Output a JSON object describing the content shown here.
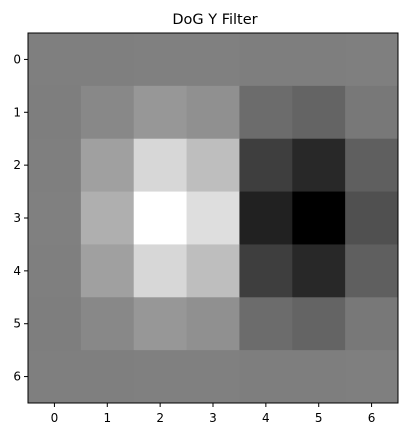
{
  "chart_data": {
    "type": "heatmap",
    "title": "DoG Y Filter",
    "xlabel": "",
    "ylabel": "",
    "colormap": "gray",
    "grid": false,
    "x_ticks": [
      "0",
      "1",
      "2",
      "3",
      "4",
      "5",
      "6"
    ],
    "y_ticks": [
      "0",
      "1",
      "2",
      "3",
      "4",
      "5",
      "6"
    ],
    "values": [
      [
        127,
        127,
        128,
        128,
        126,
        126,
        127
      ],
      [
        126,
        136,
        151,
        144,
        108,
        100,
        120
      ],
      [
        127,
        160,
        215,
        190,
        62,
        40,
        95
      ],
      [
        128,
        175,
        255,
        222,
        33,
        0,
        80
      ],
      [
        127,
        160,
        215,
        190,
        62,
        40,
        95
      ],
      [
        126,
        136,
        151,
        144,
        108,
        100,
        120
      ],
      [
        127,
        127,
        128,
        128,
        126,
        126,
        127
      ]
    ],
    "vmin": 0,
    "vmax": 255,
    "colors": {
      "axis": "#000000",
      "background": "#ffffff"
    }
  }
}
